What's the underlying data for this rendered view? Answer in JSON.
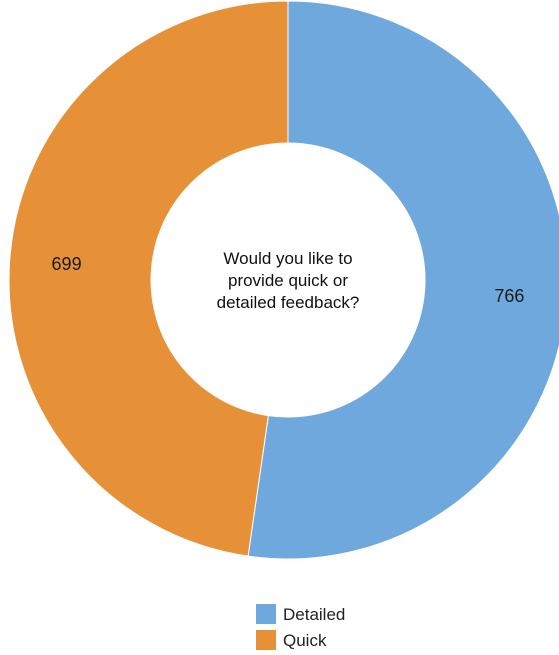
{
  "chart_data": {
    "type": "pie",
    "title": "Would you like to provide quick or detailed feedback?",
    "center_text_lines": [
      "Would you like to",
      "provide quick or",
      "detailed feedback?"
    ],
    "categories": [
      "Detailed",
      "Quick"
    ],
    "values": [
      766,
      699
    ],
    "colors": [
      "#6fa8dc",
      "#e69138"
    ],
    "legend_position": "bottom"
  }
}
